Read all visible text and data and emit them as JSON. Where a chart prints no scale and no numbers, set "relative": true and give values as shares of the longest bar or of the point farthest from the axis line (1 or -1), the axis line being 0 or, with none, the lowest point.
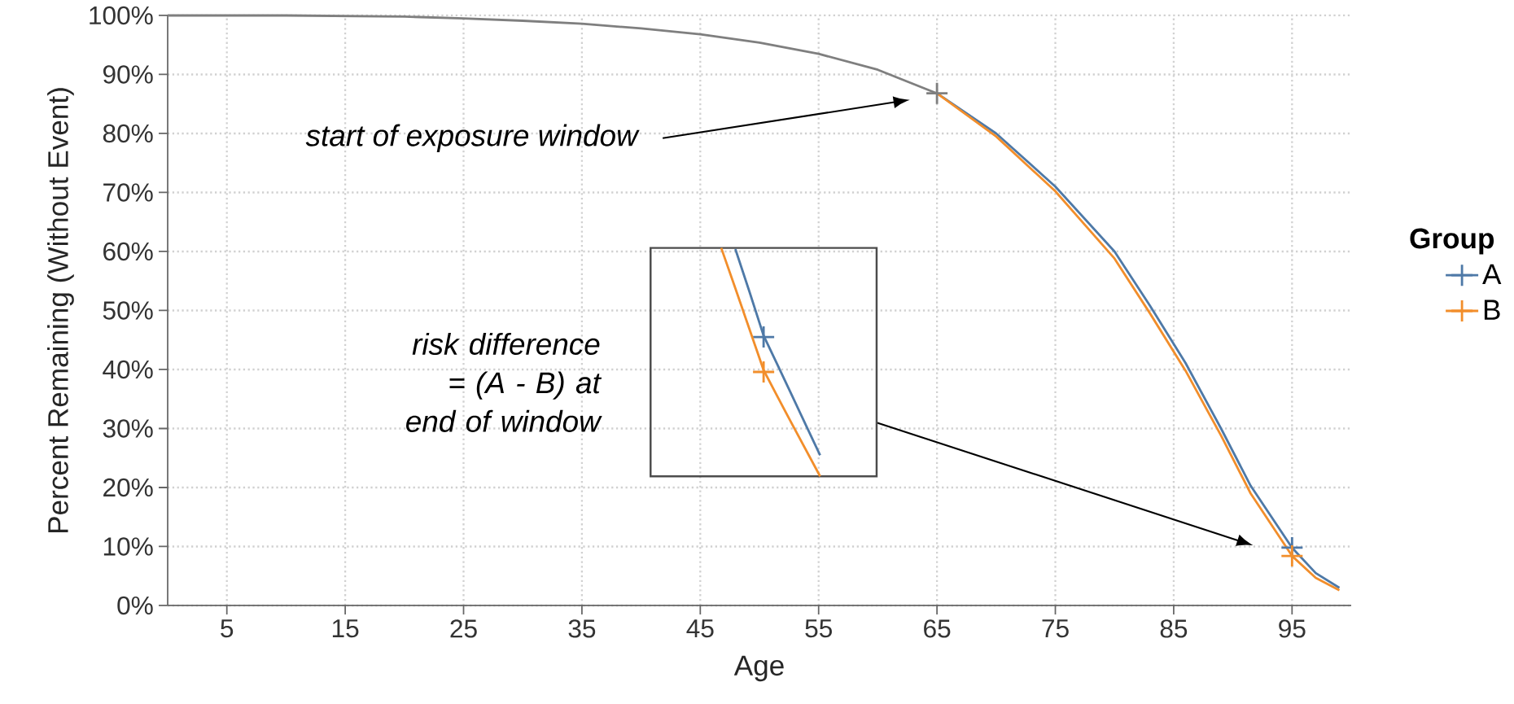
{
  "chart_data": [
    {
      "type": "line",
      "xlabel": "Age",
      "ylabel": "Percent Remaining (Without Event)",
      "legend_title": "Group",
      "legend": "right",
      "grid": true,
      "xlim": [
        0,
        100
      ],
      "ylim": [
        0,
        100
      ],
      "xticks": [
        5,
        15,
        25,
        35,
        45,
        55,
        65,
        75,
        85,
        95
      ],
      "yticks": [
        {
          "value": 0,
          "label": "0%"
        },
        {
          "value": 10,
          "label": "10%"
        },
        {
          "value": 20,
          "label": "20%"
        },
        {
          "value": 30,
          "label": "30%"
        },
        {
          "value": 40,
          "label": "40%"
        },
        {
          "value": 50,
          "label": "50%"
        },
        {
          "value": 60,
          "label": "60%"
        },
        {
          "value": 70,
          "label": "70%"
        },
        {
          "value": 80,
          "label": "80%"
        },
        {
          "value": 90,
          "label": "90%"
        },
        {
          "value": 100,
          "label": "100%"
        }
      ],
      "annotations": [
        "start of exposure window",
        "risk difference = (A - B) at end of window"
      ],
      "series": [
        {
          "color": "#7f7f7f",
          "x": [
            0,
            10,
            20,
            25,
            30,
            35,
            40,
            45,
            50,
            55,
            60,
            65
          ],
          "values": [
            100,
            100,
            99.8,
            99.5,
            99.1,
            98.6,
            97.8,
            96.8,
            95.4,
            93.5,
            90.8,
            86.8
          ]
        },
        {
          "name": "A",
          "color": "#4e79a7",
          "x": [
            65,
            70,
            75,
            80,
            83,
            86,
            89,
            91.5,
            95,
            97,
            99
          ],
          "values": [
            86.8,
            80.0,
            71.0,
            60.0,
            50.8,
            41.1,
            30.0,
            20.3,
            9.8,
            5.5,
            3.0
          ]
        },
        {
          "name": "B",
          "color": "#f28e2b",
          "x": [
            65,
            70,
            75,
            80,
            83,
            86,
            89,
            91.5,
            95,
            97,
            99
          ],
          "values": [
            86.8,
            79.5,
            70.2,
            58.8,
            49.5,
            39.8,
            28.8,
            19.0,
            8.4,
            4.7,
            2.6
          ]
        },
        {
          "type": "scatter",
          "marker": "cross",
          "color": "#7f7f7f",
          "x": [
            65
          ],
          "values": [
            86.8
          ]
        },
        {
          "type": "scatter",
          "marker": "cross",
          "color": "#4e79a7",
          "x": [
            95
          ],
          "values": [
            9.8
          ]
        },
        {
          "type": "scatter",
          "marker": "cross",
          "color": "#f28e2b",
          "x": [
            95
          ],
          "values": [
            8.4
          ]
        }
      ]
    },
    {
      "type": "line",
      "relative": true,
      "categories": [
        null,
        null,
        null,
        null,
        null,
        null,
        null,
        null,
        null,
        null,
        null,
        null,
        null,
        null,
        null,
        null,
        null
      ],
      "series": [
        {
          "color": "#4e79a7",
          "values": [
            null,
            null,
            null,
            null,
            null,
            null,
            0.995,
            0.808,
            0.616,
            0.486,
            0.355,
            0.223,
            0.092,
            null,
            null,
            null,
            null
          ]
        },
        {
          "color": "#f28e2b",
          "values": [
            null,
            null,
            null,
            null,
            null,
            1.0,
            0.823,
            0.644,
            0.465,
            0.347,
            0.23,
            0.115,
            0.0,
            null,
            null,
            null,
            null
          ]
        }
      ]
    }
  ]
}
